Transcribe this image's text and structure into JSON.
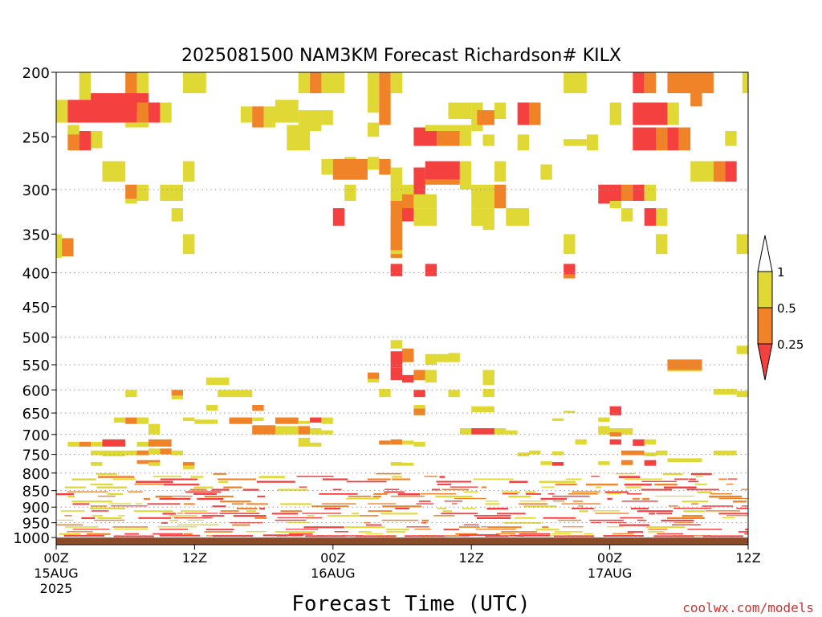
{
  "chart_data": {
    "type": "heatmap",
    "title": "2025081500 NAM3KM Forecast Richardson# KILX",
    "xlabel": "Forecast Time (UTC)",
    "ylabel": "",
    "credit": "coolwx.com/models",
    "x_unit": "forecast hours from 2025-08-15 00Z",
    "xlim": [
      0,
      60
    ],
    "ylim": [
      1025,
      200
    ],
    "y_scale": "pressure (log)",
    "x_ticks": [
      {
        "hour": 0,
        "labels": [
          "00Z",
          "15AUG",
          "2025"
        ]
      },
      {
        "hour": 12,
        "labels": [
          "12Z"
        ]
      },
      {
        "hour": 24,
        "labels": [
          "00Z",
          "16AUG"
        ]
      },
      {
        "hour": 36,
        "labels": [
          "12Z"
        ]
      },
      {
        "hour": 48,
        "labels": [
          "00Z",
          "17AUG"
        ]
      },
      {
        "hour": 60,
        "labels": [
          "12Z"
        ]
      }
    ],
    "y_ticks": [
      200,
      250,
      300,
      350,
      400,
      450,
      500,
      550,
      600,
      650,
      700,
      750,
      800,
      850,
      900,
      950,
      1000
    ],
    "grid": "dotted horizontal lines",
    "ground": {
      "top_hpa": 1000,
      "color": "#8b4a28"
    },
    "legend": {
      "position": "right",
      "levels": [
        {
          "label": "1",
          "color": "#ffffff"
        },
        {
          "label": "0.5",
          "color": "#e0d834"
        },
        {
          "label": "0.25",
          "color": "#f08228"
        },
        {
          "label": "",
          "color": "#f54040"
        }
      ]
    },
    "color_classes": {
      "y": {
        "range": "0.5-1",
        "color": "#e0d834"
      },
      "o": {
        "range": "0.25-0.5",
        "color": "#f08228"
      },
      "r": {
        "range": "<0.25",
        "color": "#f54040"
      }
    },
    "cells": [
      [
        "y",
        2,
        3,
        200,
        220
      ],
      [
        "o",
        6,
        7,
        200,
        220
      ],
      [
        "y",
        7,
        8,
        200,
        220
      ],
      [
        "y",
        11,
        13,
        200,
        215
      ],
      [
        "y",
        21,
        22,
        200,
        215
      ],
      [
        "o",
        22,
        23,
        200,
        215
      ],
      [
        "y",
        23,
        25,
        200,
        215
      ],
      [
        "y",
        27,
        28,
        200,
        230
      ],
      [
        "o",
        28,
        29,
        200,
        240
      ],
      [
        "y",
        29,
        30,
        200,
        215
      ],
      [
        "y",
        44,
        46,
        200,
        215
      ],
      [
        "r",
        50,
        51,
        200,
        215
      ],
      [
        "o",
        51,
        52,
        200,
        215
      ],
      [
        "o",
        53,
        57,
        200,
        215
      ],
      [
        "y",
        59.5,
        60,
        200,
        215
      ],
      [
        "y",
        0,
        1,
        220,
        238
      ],
      [
        "r",
        1,
        7,
        220,
        238
      ],
      [
        "o",
        4,
        5,
        215,
        222
      ],
      [
        "r",
        3,
        8,
        215,
        230
      ],
      [
        "o",
        7,
        8,
        222,
        238
      ],
      [
        "r",
        8,
        9,
        222,
        238
      ],
      [
        "y",
        6,
        8,
        238,
        242
      ],
      [
        "y",
        9,
        10,
        222,
        238
      ],
      [
        "y",
        16,
        17,
        225,
        238
      ],
      [
        "o",
        17,
        18,
        225,
        242
      ],
      [
        "y",
        18,
        19,
        225,
        242
      ],
      [
        "y",
        19,
        21,
        220,
        238
      ],
      [
        "y",
        21,
        23,
        228,
        245
      ],
      [
        "y",
        23,
        24,
        228,
        240
      ],
      [
        "y",
        27,
        28,
        238,
        250
      ],
      [
        "y",
        34,
        36,
        222,
        235
      ],
      [
        "y",
        36,
        37,
        222,
        245
      ],
      [
        "o",
        36.5,
        38,
        228,
        240
      ],
      [
        "y",
        38,
        39,
        222,
        235
      ],
      [
        "r",
        40,
        41,
        222,
        240
      ],
      [
        "o",
        41,
        42,
        222,
        240
      ],
      [
        "y",
        48,
        49,
        222,
        240
      ],
      [
        "r",
        50,
        53,
        222,
        240
      ],
      [
        "y",
        53,
        54,
        222,
        240
      ],
      [
        "o",
        55,
        56,
        215,
        225
      ],
      [
        "o",
        1,
        2,
        245,
        262
      ],
      [
        "r",
        2,
        3,
        245,
        262
      ],
      [
        "y",
        3,
        4,
        245,
        260
      ],
      [
        "y",
        1,
        2,
        240,
        248
      ],
      [
        "y",
        20,
        22,
        240,
        262
      ],
      [
        "r",
        31,
        33,
        242,
        258
      ],
      [
        "o",
        33,
        35,
        242,
        258
      ],
      [
        "y",
        32,
        35,
        240,
        245
      ],
      [
        "y",
        35,
        36,
        240,
        258
      ],
      [
        "y",
        37,
        38,
        248,
        258
      ],
      [
        "y",
        40,
        41,
        248,
        262
      ],
      [
        "y",
        44,
        46,
        252,
        258
      ],
      [
        "y",
        46,
        47,
        248,
        262
      ],
      [
        "r",
        50,
        52,
        242,
        262
      ],
      [
        "o",
        52,
        53,
        242,
        262
      ],
      [
        "r",
        53,
        54,
        242,
        262
      ],
      [
        "o",
        54,
        55,
        242,
        262
      ],
      [
        "y",
        58,
        59,
        245,
        258
      ],
      [
        "y",
        4,
        6,
        272,
        292
      ],
      [
        "y",
        11,
        12,
        272,
        292
      ],
      [
        "y",
        23,
        24,
        270,
        285
      ],
      [
        "y",
        25,
        26,
        268,
        280
      ],
      [
        "o",
        24,
        27,
        270,
        290
      ],
      [
        "y",
        27,
        28,
        268,
        280
      ],
      [
        "o",
        28,
        29,
        270,
        285
      ],
      [
        "y",
        29,
        30,
        278,
        298
      ],
      [
        "r",
        31,
        32,
        278,
        300
      ],
      [
        "r",
        32,
        35,
        272,
        290
      ],
      [
        "o",
        32,
        35,
        290,
        295
      ],
      [
        "y",
        35,
        36,
        272,
        300
      ],
      [
        "y",
        38,
        39,
        272,
        292
      ],
      [
        "y",
        42,
        43,
        275,
        290
      ],
      [
        "y",
        55,
        57,
        272,
        292
      ],
      [
        "o",
        57,
        58,
        272,
        292
      ],
      [
        "r",
        58,
        59,
        272,
        292
      ],
      [
        "o",
        6,
        7,
        295,
        310
      ],
      [
        "y",
        6,
        7,
        310,
        315
      ],
      [
        "y",
        7,
        8,
        295,
        312
      ],
      [
        "y",
        9,
        11,
        295,
        312
      ],
      [
        "y",
        25,
        26,
        295,
        312
      ],
      [
        "y",
        29,
        30,
        295,
        312
      ],
      [
        "o",
        29,
        30,
        312,
        375
      ],
      [
        "y",
        30,
        31,
        295,
        305
      ],
      [
        "r",
        31,
        32,
        295,
        312
      ],
      [
        "o",
        30,
        31,
        305,
        330
      ],
      [
        "y",
        31,
        33,
        305,
        320
      ],
      [
        "y",
        36,
        38,
        295,
        320
      ],
      [
        "o",
        38,
        39,
        295,
        320
      ],
      [
        "r",
        47,
        49,
        295,
        315
      ],
      [
        "y",
        48,
        49,
        312,
        320
      ],
      [
        "o",
        49,
        50,
        295,
        312
      ],
      [
        "r",
        50,
        51,
        295,
        312
      ],
      [
        "y",
        51,
        52,
        295,
        312
      ],
      [
        "y",
        10,
        11,
        320,
        335
      ],
      [
        "r",
        24,
        25,
        320,
        340
      ],
      [
        "o",
        29,
        30,
        330,
        380
      ],
      [
        "r",
        30,
        31,
        320,
        335
      ],
      [
        "y",
        31,
        33,
        320,
        340
      ],
      [
        "y",
        36,
        38,
        320,
        340
      ],
      [
        "y",
        37,
        38,
        340,
        345
      ],
      [
        "y",
        39,
        41,
        320,
        340
      ],
      [
        "y",
        49,
        50,
        320,
        335
      ],
      [
        "r",
        51,
        52,
        320,
        340
      ],
      [
        "y",
        52,
        53,
        320,
        340
      ],
      [
        "y",
        0,
        0.5,
        350,
        380
      ],
      [
        "o",
        0.5,
        1.5,
        355,
        378
      ],
      [
        "y",
        11,
        12,
        350,
        375
      ],
      [
        "y",
        44,
        45,
        350,
        375
      ],
      [
        "y",
        52,
        53,
        350,
        375
      ],
      [
        "y",
        59,
        60,
        350,
        375
      ],
      [
        "y",
        29,
        30,
        370,
        375
      ],
      [
        "r",
        29,
        30,
        388,
        405
      ],
      [
        "r",
        32,
        33,
        388,
        405
      ],
      [
        "r",
        44,
        45,
        388,
        405
      ],
      [
        "o",
        44,
        45,
        402,
        408
      ],
      [
        "y",
        59,
        60,
        515,
        530
      ],
      [
        "y",
        29,
        30,
        505,
        520
      ],
      [
        "r",
        29,
        30,
        525,
        555
      ],
      [
        "o",
        30,
        31,
        520,
        545
      ],
      [
        "y",
        32,
        33,
        530,
        550
      ],
      [
        "y",
        33,
        34,
        530,
        545
      ],
      [
        "y",
        34,
        35,
        528,
        545
      ],
      [
        "o",
        53,
        56,
        540,
        560
      ],
      [
        "y",
        53,
        56,
        560,
        563
      ],
      [
        "r",
        29,
        30,
        555,
        580
      ],
      [
        "r",
        30,
        31,
        570,
        585
      ],
      [
        "o",
        31,
        32,
        560,
        580
      ],
      [
        "y",
        32,
        33,
        560,
        585
      ],
      [
        "y",
        37,
        38,
        560,
        590
      ],
      [
        "o",
        27,
        28,
        565,
        578
      ],
      [
        "y",
        27,
        28,
        578,
        585
      ],
      [
        "y",
        13,
        15,
        575,
        590
      ],
      [
        "y",
        6,
        7,
        600,
        615
      ],
      [
        "o",
        10,
        11,
        600,
        612
      ],
      [
        "y",
        10,
        11,
        612,
        620
      ],
      [
        "y",
        14,
        17,
        600,
        615
      ],
      [
        "y",
        28,
        29,
        598,
        615
      ],
      [
        "r",
        31,
        32,
        600,
        615
      ],
      [
        "y",
        34,
        35,
        600,
        615
      ],
      [
        "y",
        37,
        38,
        598,
        615
      ],
      [
        "y",
        57,
        59,
        598,
        610
      ],
      [
        "y",
        59,
        60,
        602,
        615
      ],
      [
        "y",
        13,
        14,
        632,
        645
      ],
      [
        "o",
        17,
        18,
        632,
        645
      ],
      [
        "o",
        31,
        32,
        640,
        655
      ],
      [
        "y",
        31,
        32,
        632,
        640
      ],
      [
        "y",
        36,
        38,
        635,
        648
      ],
      [
        "r",
        48,
        49,
        635,
        655
      ],
      [
        "y",
        44,
        45,
        645,
        650
      ],
      [
        "y",
        5,
        6,
        660,
        672
      ],
      [
        "o",
        6,
        7,
        660,
        675
      ],
      [
        "y",
        7,
        8,
        660,
        675
      ],
      [
        "y",
        11,
        12,
        660,
        668
      ],
      [
        "y",
        12,
        14,
        665,
        675
      ],
      [
        "o",
        15,
        17,
        660,
        675
      ],
      [
        "y",
        17,
        18,
        660,
        668
      ],
      [
        "o",
        19,
        21,
        660,
        675
      ],
      [
        "y",
        21,
        22,
        668,
        675
      ],
      [
        "r",
        22,
        23,
        660,
        672
      ],
      [
        "y",
        23,
        24,
        660,
        675
      ],
      [
        "y",
        43,
        44,
        662,
        668
      ],
      [
        "y",
        47,
        48,
        660,
        670
      ],
      [
        "y",
        8,
        9,
        675,
        700
      ],
      [
        "o",
        17,
        19,
        678,
        700
      ],
      [
        "y",
        19,
        21,
        680,
        700
      ],
      [
        "o",
        21,
        22,
        680,
        700
      ],
      [
        "y",
        22,
        23,
        685,
        700
      ],
      [
        "y",
        23,
        24,
        690,
        700
      ],
      [
        "y",
        35,
        36,
        685,
        700
      ],
      [
        "r",
        36,
        38,
        685,
        700
      ],
      [
        "y",
        38,
        39,
        685,
        700
      ],
      [
        "y",
        39,
        40,
        690,
        700
      ],
      [
        "y",
        47,
        48,
        680,
        700
      ],
      [
        "y",
        48,
        50,
        685,
        700
      ],
      [
        "o",
        48,
        49,
        695,
        705
      ],
      [
        "y",
        1,
        2,
        718,
        730
      ],
      [
        "o",
        2,
        3,
        718,
        730
      ],
      [
        "y",
        3,
        4,
        718,
        730
      ],
      [
        "r",
        4,
        6,
        712,
        730
      ],
      [
        "y",
        7,
        8,
        718,
        730
      ],
      [
        "o",
        8,
        10,
        712,
        730
      ],
      [
        "y",
        21,
        22,
        708,
        730
      ],
      [
        "y",
        22,
        23,
        720,
        730
      ],
      [
        "o",
        28,
        29,
        715,
        725
      ],
      [
        "o",
        29,
        30,
        712,
        725
      ],
      [
        "y",
        30,
        31,
        715,
        725
      ],
      [
        "y",
        31,
        32,
        718,
        730
      ],
      [
        "y",
        45,
        46,
        712,
        725
      ],
      [
        "r",
        48,
        49,
        712,
        725
      ],
      [
        "r",
        50,
        51,
        712,
        728
      ],
      [
        "y",
        51,
        52,
        712,
        725
      ],
      [
        "y",
        3,
        4,
        740,
        752
      ],
      [
        "y",
        4,
        6,
        740,
        755
      ],
      [
        "y",
        6,
        8,
        740,
        752
      ],
      [
        "o",
        7,
        8,
        740,
        752
      ],
      [
        "y",
        8,
        9,
        735,
        750
      ],
      [
        "o",
        9,
        10,
        735,
        750
      ],
      [
        "y",
        10,
        11,
        740,
        752
      ],
      [
        "y",
        40,
        41,
        745,
        755
      ],
      [
        "y",
        41,
        42,
        740,
        750
      ],
      [
        "y",
        43,
        44,
        742,
        752
      ],
      [
        "y",
        52,
        53,
        740,
        752
      ],
      [
        "o",
        49,
        51,
        740,
        752
      ],
      [
        "y",
        51,
        52,
        745,
        755
      ],
      [
        "y",
        57,
        59,
        740,
        752
      ],
      [
        "y",
        3,
        4,
        770,
        780
      ],
      [
        "o",
        7,
        9,
        765,
        775
      ],
      [
        "y",
        8,
        9,
        770,
        780
      ],
      [
        "o",
        11,
        12,
        770,
        780
      ],
      [
        "y",
        11,
        12,
        780,
        790
      ],
      [
        "y",
        29,
        30,
        770,
        780
      ],
      [
        "y",
        30,
        31,
        772,
        780
      ],
      [
        "r",
        51,
        52,
        770,
        780
      ],
      [
        "y",
        47,
        48,
        768,
        778
      ],
      [
        "o",
        49,
        50,
        765,
        778
      ],
      [
        "r",
        51,
        52,
        765,
        775
      ],
      [
        "y",
        42,
        43,
        768,
        778
      ],
      [
        "r",
        43,
        44,
        770,
        780
      ],
      [
        "y",
        53,
        56,
        760,
        770
      ]
    ],
    "pbl_rows": [
      800,
      808,
      815,
      822,
      830,
      838,
      845,
      852,
      858,
      865,
      872,
      880,
      888,
      895,
      902,
      910,
      918,
      925,
      932,
      940,
      948,
      955,
      962,
      970,
      978,
      985,
      992
    ]
  }
}
